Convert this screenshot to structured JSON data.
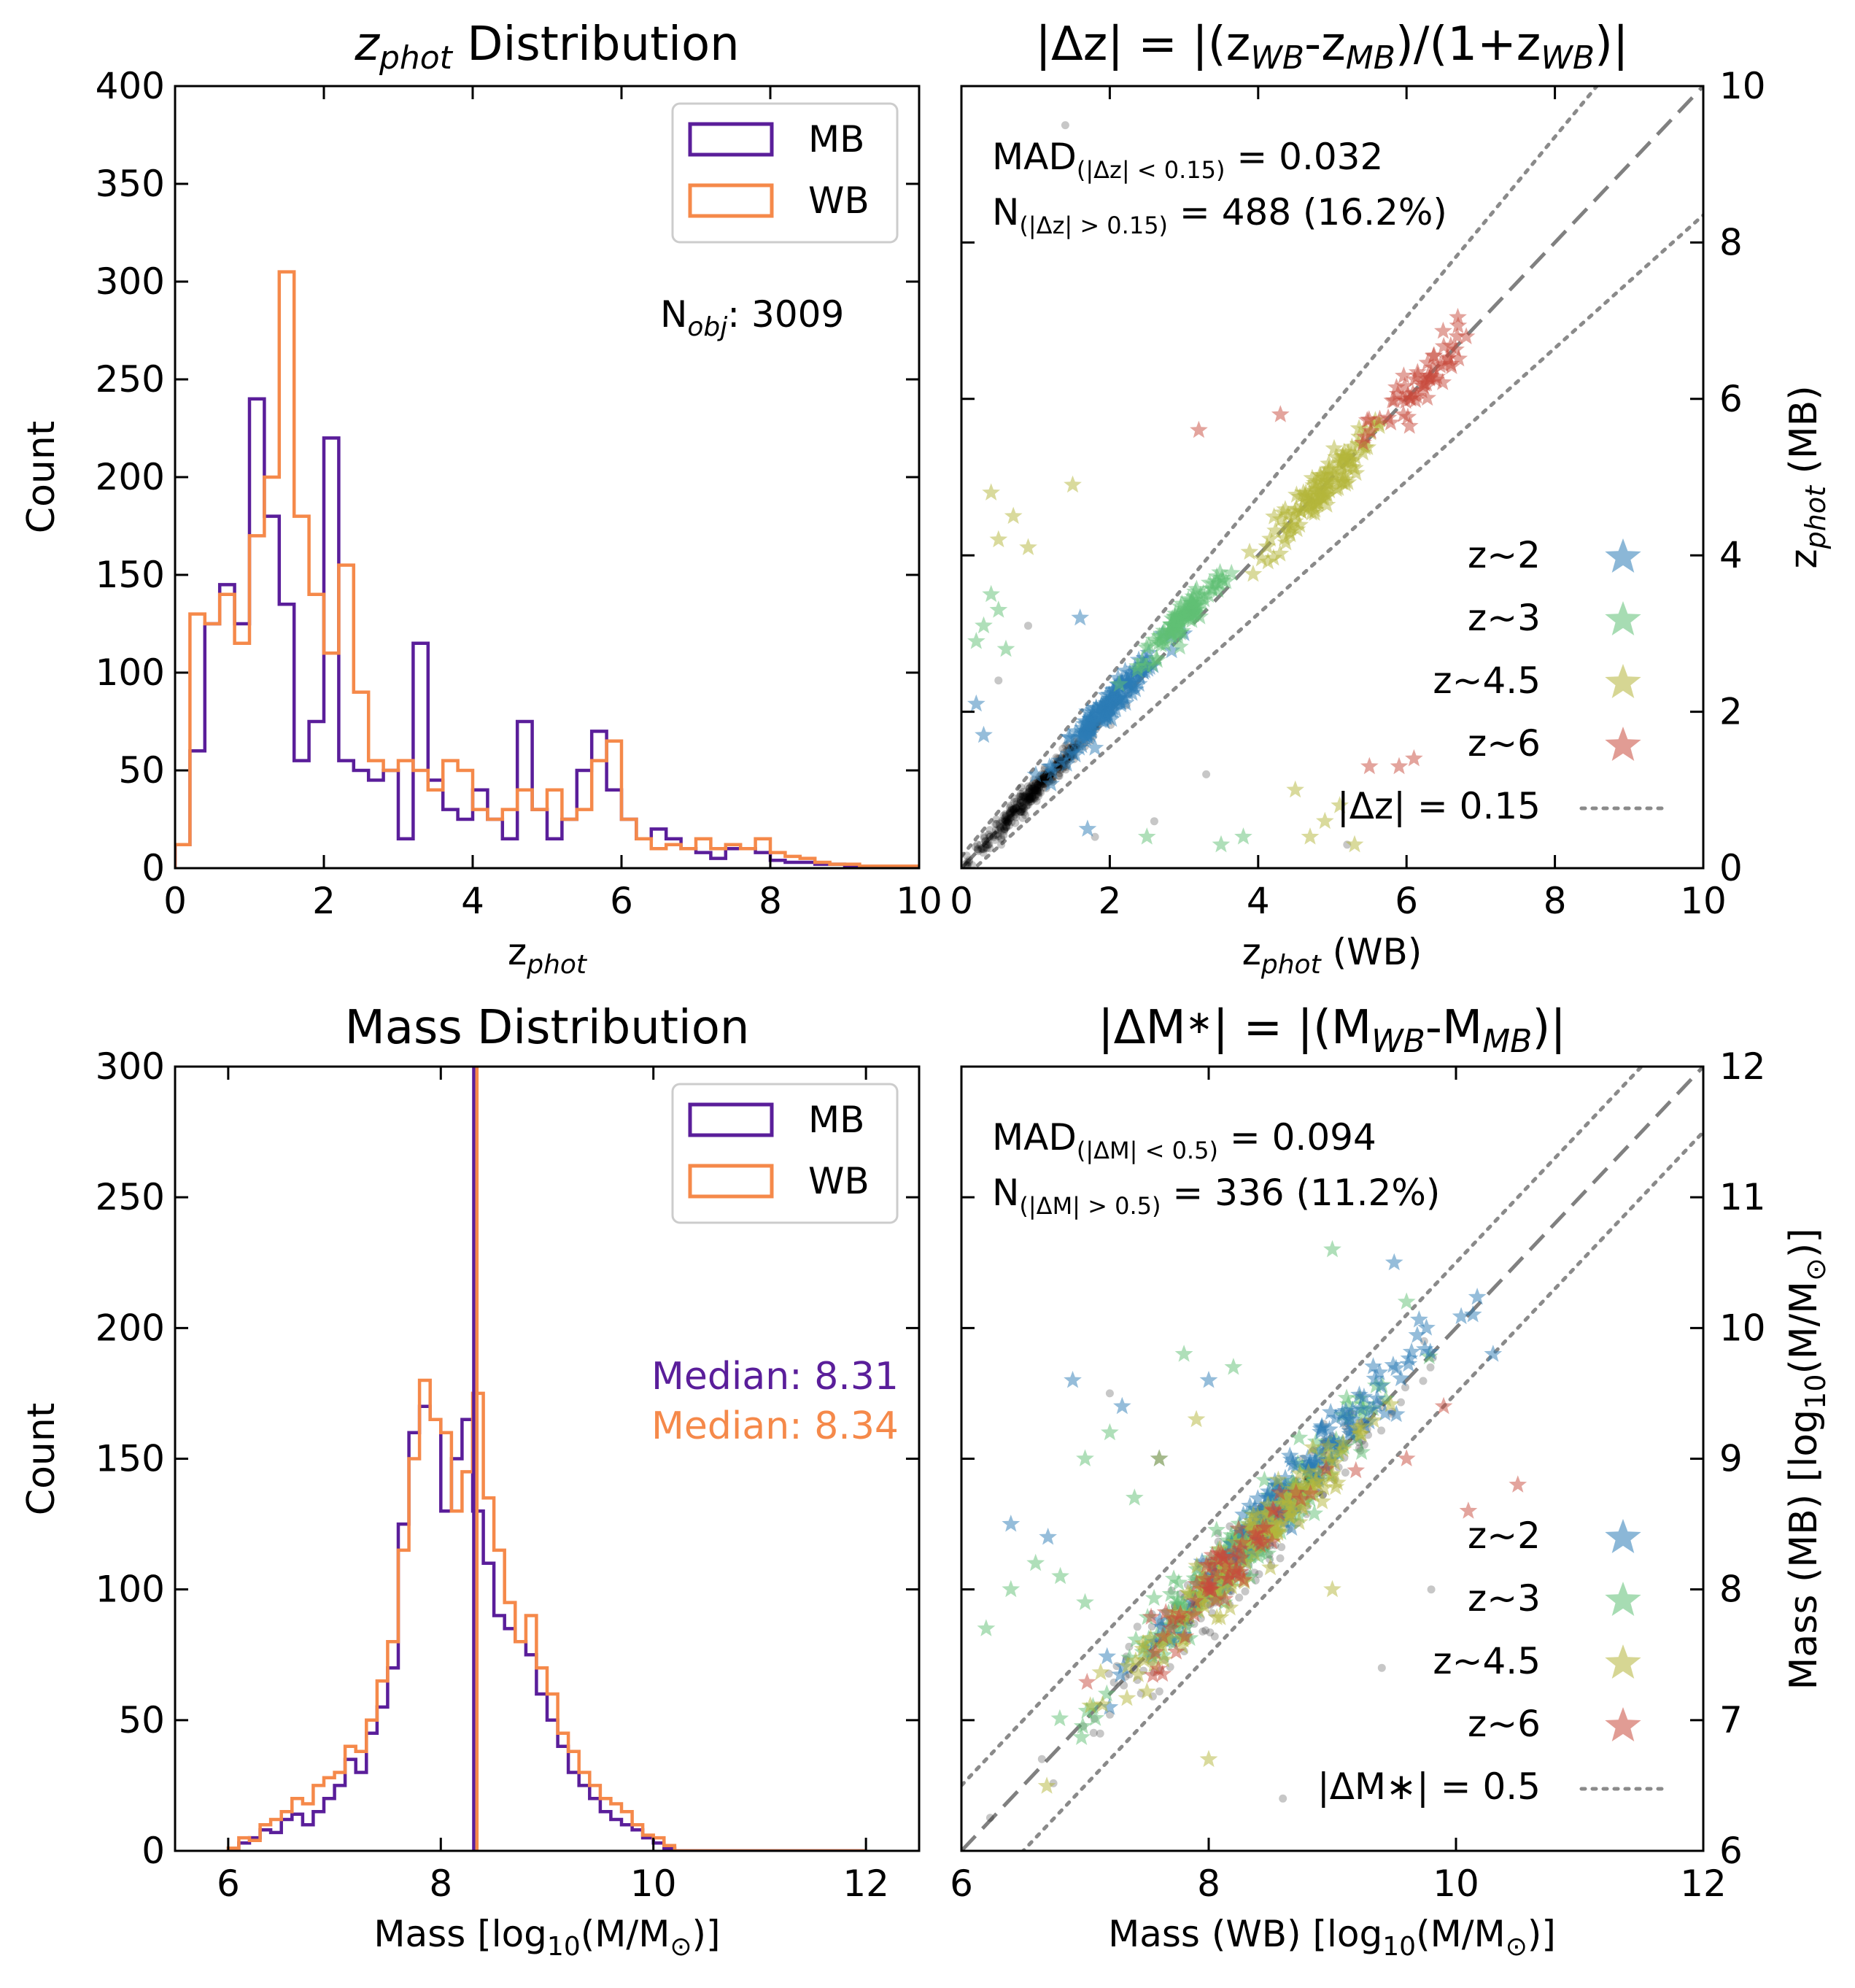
{
  "colors": {
    "MB": "#5a1e9a",
    "WB": "#f5894a",
    "z2": "#2c7bb6",
    "z3": "#5fbf74",
    "z45": "#b4b53a",
    "z6": "#c84a3c",
    "black_pts": "#000000",
    "one_to_one": "#808080",
    "dotted": "#8a8a8a"
  },
  "chart_data": [
    {
      "id": "zphot_hist",
      "type": "histogram-step",
      "title_main": "z",
      "title_sub": "phot",
      "title_rest": " Distribution",
      "xlabel_main": "z",
      "xlabel_sub": "phot",
      "ylabel": "Count",
      "xlim": [
        0,
        10
      ],
      "ylim": [
        0,
        400
      ],
      "xticks": [
        0,
        2,
        4,
        6,
        8,
        10
      ],
      "yticks": [
        0,
        50,
        100,
        150,
        200,
        250,
        300,
        350,
        400
      ],
      "bin_width": 0.2,
      "series": [
        {
          "name": "MB",
          "values": [
            12,
            60,
            125,
            145,
            125,
            240,
            180,
            135,
            55,
            75,
            220,
            55,
            50,
            45,
            50,
            15,
            115,
            45,
            30,
            25,
            40,
            25,
            15,
            75,
            30,
            15,
            25,
            50,
            70,
            40,
            25,
            15,
            20,
            15,
            10,
            8,
            5,
            10,
            10,
            8,
            4,
            3,
            3,
            2,
            2,
            1,
            1,
            1,
            0,
            0,
            1,
            1,
            0,
            0,
            0,
            0,
            0,
            0,
            0,
            0
          ]
        },
        {
          "name": "WB",
          "values": [
            12,
            130,
            125,
            140,
            115,
            170,
            200,
            305,
            180,
            140,
            110,
            155,
            90,
            55,
            50,
            55,
            50,
            40,
            55,
            50,
            30,
            25,
            30,
            40,
            30,
            40,
            25,
            30,
            55,
            65,
            25,
            15,
            10,
            12,
            10,
            15,
            10,
            12,
            10,
            15,
            8,
            6,
            5,
            3,
            2,
            2,
            1,
            1,
            1,
            1,
            1,
            1,
            0,
            0,
            0,
            0,
            0,
            0,
            0,
            0
          ]
        }
      ],
      "legend": [
        "MB",
        "WB"
      ],
      "annotation_main": "N",
      "annotation_sub": "obj",
      "annotation_rest": ": 3009"
    },
    {
      "id": "zphot_scatter",
      "type": "scatter",
      "title": "|Δz| = |(z",
      "title_sub1": "WB",
      "title_mid": "-z",
      "title_sub2": "MB",
      "title_mid2": ")/(1+z",
      "title_sub3": "WB",
      "title_end": ")|",
      "xlabel_main": "z",
      "xlabel_sub": "phot",
      "xlabel_rest": " (WB)",
      "ylabel_main": "z",
      "ylabel_sub": "phot",
      "ylabel_rest": " (MB)",
      "xlim": [
        0,
        10
      ],
      "ylim": [
        0,
        10
      ],
      "xticks": [
        0,
        2,
        4,
        6,
        8,
        10
      ],
      "yticks": [
        0,
        2,
        4,
        6,
        8,
        10
      ],
      "stat1_main": "MAD",
      "stat1_sub": "(|Δz| < 0.15)",
      "stat1_rest": " = 0.032",
      "stat2_main": "N",
      "stat2_sub": "(|Δz| > 0.15)",
      "stat2_rest": " = 488 (16.2%)",
      "legend": [
        "z~2",
        "z~3",
        "z~4.5",
        "z~6",
        "|Δz| = 0.15"
      ],
      "outlier_threshold": 0.15,
      "groups": [
        {
          "name": "black",
          "center": [
            1.0,
            1.0
          ],
          "spread": 0.45,
          "count": 420,
          "outliers": [
            [
              0.5,
              2.4
            ],
            [
              1.8,
              0.4
            ],
            [
              2.6,
              0.6
            ],
            [
              0.9,
              3.1
            ],
            [
              3.3,
              1.2
            ],
            [
              1.4,
              9.5
            ],
            [
              5.2,
              0.3
            ]
          ]
        },
        {
          "name": "z~2",
          "center": [
            2.0,
            2.1
          ],
          "spread": 0.35,
          "count": 160,
          "outliers": [
            [
              0.2,
              2.1
            ],
            [
              0.3,
              1.7
            ],
            [
              1.7,
              0.5
            ],
            [
              3.0,
              3.0
            ],
            [
              1.6,
              3.2
            ]
          ]
        },
        {
          "name": "z~3",
          "center": [
            3.0,
            3.2
          ],
          "spread": 0.3,
          "count": 110,
          "outliers": [
            [
              0.3,
              3.1
            ],
            [
              0.5,
              3.3
            ],
            [
              0.2,
              2.9
            ],
            [
              0.4,
              3.5
            ],
            [
              0.6,
              2.8
            ],
            [
              3.8,
              0.4
            ],
            [
              3.5,
              0.3
            ],
            [
              2.5,
              0.4
            ]
          ]
        },
        {
          "name": "z~4.5",
          "center": [
            4.8,
            4.8
          ],
          "spread": 0.35,
          "count": 130,
          "outliers": [
            [
              0.4,
              4.8
            ],
            [
              0.7,
              4.5
            ],
            [
              0.9,
              4.1
            ],
            [
              0.5,
              4.2
            ],
            [
              1.5,
              4.9
            ],
            [
              4.9,
              0.6
            ],
            [
              4.5,
              1.0
            ],
            [
              5.1,
              0.8
            ],
            [
              4.7,
              0.4
            ],
            [
              5.3,
              0.3
            ]
          ]
        },
        {
          "name": "z~6",
          "center": [
            6.2,
            6.2
          ],
          "spread": 0.35,
          "count": 60,
          "outliers": [
            [
              3.2,
              5.6
            ],
            [
              4.3,
              5.8
            ],
            [
              5.5,
              1.3
            ],
            [
              5.9,
              1.3
            ],
            [
              6.1,
              1.4
            ]
          ]
        }
      ]
    },
    {
      "id": "mass_hist",
      "type": "histogram-step",
      "title": "Mass Distribution",
      "xlabel_a": "Mass [log",
      "xlabel_sub": "10",
      "xlabel_b": "(M/M",
      "xlabel_sun": "⊙",
      "xlabel_c": ")]",
      "ylabel": "Count",
      "xlim": [
        5.5,
        12.5
      ],
      "ylim": [
        0,
        300
      ],
      "xticks": [
        6,
        8,
        10,
        12
      ],
      "yticks": [
        0,
        50,
        100,
        150,
        200,
        250,
        300
      ],
      "bin_start": 6.0,
      "bin_width": 0.1,
      "series": [
        {
          "name": "MB",
          "values": [
            0,
            3,
            5,
            8,
            7,
            12,
            14,
            10,
            15,
            20,
            25,
            35,
            30,
            45,
            55,
            70,
            125,
            160,
            170,
            165,
            130,
            150,
            165,
            130,
            110,
            90,
            85,
            80,
            75,
            60,
            50,
            40,
            30,
            25,
            20,
            15,
            12,
            10,
            8,
            5,
            3,
            1,
            0,
            0,
            0,
            0,
            0,
            0,
            0,
            0,
            0,
            0,
            0,
            0,
            0,
            0,
            0,
            0,
            0,
            0
          ]
        },
        {
          "name": "WB",
          "values": [
            1,
            5,
            4,
            10,
            12,
            15,
            20,
            18,
            25,
            28,
            30,
            40,
            38,
            50,
            65,
            80,
            115,
            150,
            180,
            165,
            160,
            130,
            145,
            175,
            135,
            115,
            95,
            80,
            90,
            70,
            60,
            45,
            38,
            30,
            25,
            20,
            18,
            15,
            10,
            6,
            5,
            2,
            0,
            0,
            0,
            0,
            0,
            0,
            0,
            0,
            0,
            0,
            0,
            0,
            0,
            0,
            0,
            0,
            0,
            0
          ]
        }
      ],
      "legend": [
        "MB",
        "WB"
      ],
      "median_MB": 8.31,
      "median_WB": 8.34,
      "median_MB_label": "Median: 8.31",
      "median_WB_label": "Median: 8.34"
    },
    {
      "id": "mass_scatter",
      "type": "scatter",
      "title": "|ΔM",
      "title_star": "∗",
      "title_mid": "| = |(M",
      "title_sub1": "WB",
      "title_mid2": "-M",
      "title_sub2": "MB",
      "title_end": ")|",
      "xlabel_a": "Mass (WB) [log",
      "xlabel_sub": "10",
      "xlabel_b": "(M/M",
      "xlabel_sun": "⊙",
      "xlabel_c": ")]",
      "ylabel_a": "Mass (MB) [log",
      "ylabel_sub": "10",
      "ylabel_b": "(M/M",
      "ylabel_sun": "⊙",
      "ylabel_c": ")]",
      "xlim": [
        6,
        12
      ],
      "ylim": [
        6,
        12
      ],
      "xticks": [
        6,
        8,
        10,
        12
      ],
      "yticks": [
        6,
        7,
        8,
        9,
        10,
        11,
        12
      ],
      "stat1_main": "MAD",
      "stat1_sub": "(|ΔM| < 0.5)",
      "stat1_rest": " = 0.094",
      "stat2_main": "N",
      "stat2_sub": "(|ΔM| > 0.5)",
      "stat2_rest": " = 336 (11.2%)",
      "legend": [
        "z~2",
        "z~3",
        "z~4.5",
        "z~6",
        "|ΔM∗| = 0.5"
      ],
      "outlier_threshold": 0.5,
      "groups": [
        {
          "name": "black",
          "center": [
            8.3,
            8.3
          ],
          "spread": 0.55,
          "count": 380,
          "outliers": [
            [
              7.2,
              9.5
            ],
            [
              9.8,
              8.0
            ],
            [
              8.6,
              6.4
            ],
            [
              9.4,
              7.4
            ]
          ]
        },
        {
          "name": "z~3",
          "center": [
            8.3,
            8.35
          ],
          "spread": 0.5,
          "count": 200,
          "outliers": [
            [
              6.4,
              8.0
            ],
            [
              6.6,
              8.2
            ],
            [
              6.8,
              8.1
            ],
            [
              7.0,
              9.0
            ],
            [
              7.2,
              9.2
            ],
            [
              7.4,
              8.7
            ],
            [
              7.8,
              9.8
            ],
            [
              8.2,
              9.7
            ],
            [
              9.0,
              10.6
            ],
            [
              9.6,
              10.2
            ],
            [
              7.0,
              7.9
            ],
            [
              6.2,
              7.7
            ]
          ]
        },
        {
          "name": "z~2",
          "center": [
            8.6,
            8.7
          ],
          "spread": 0.55,
          "count": 140,
          "outliers": [
            [
              6.9,
              9.6
            ],
            [
              7.3,
              9.4
            ],
            [
              6.4,
              8.5
            ],
            [
              6.7,
              8.4
            ],
            [
              7.6,
              9.0
            ],
            [
              8.0,
              9.6
            ],
            [
              10.3,
              9.8
            ],
            [
              9.5,
              10.5
            ]
          ]
        },
        {
          "name": "z~4.5",
          "center": [
            8.35,
            8.35
          ],
          "spread": 0.5,
          "count": 160,
          "outliers": [
            [
              7.6,
              9.0
            ],
            [
              7.9,
              9.3
            ],
            [
              8.0,
              6.7
            ],
            [
              9.0,
              8.0
            ]
          ]
        },
        {
          "name": "z~6",
          "center": [
            8.2,
            8.2
          ],
          "spread": 0.35,
          "count": 70,
          "outliers": [
            [
              9.6,
              9.0
            ],
            [
              9.9,
              9.4
            ],
            [
              10.1,
              8.6
            ],
            [
              10.5,
              8.8
            ]
          ]
        }
      ]
    }
  ]
}
